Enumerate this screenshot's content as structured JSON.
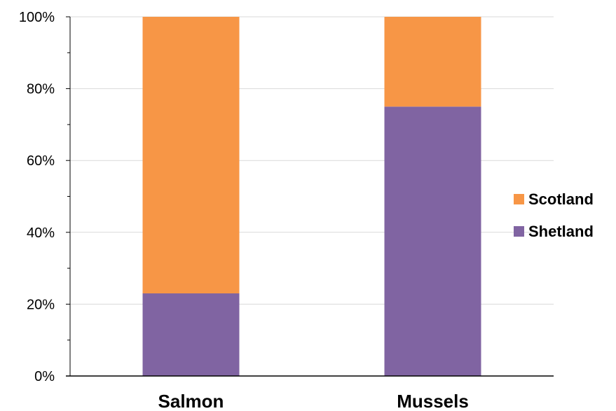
{
  "chart_data": {
    "type": "bar",
    "stacked": true,
    "percent": true,
    "categories": [
      "Salmon",
      "Mussels"
    ],
    "series": [
      {
        "name": "Shetland",
        "values": [
          23,
          75
        ],
        "color": "#8064A2"
      },
      {
        "name": "Scotland",
        "values": [
          77,
          25
        ],
        "color": "#F79646"
      }
    ],
    "ylim": [
      0,
      100
    ],
    "y_ticks": [
      "0%",
      "20%",
      "40%",
      "60%",
      "80%",
      "100%"
    ],
    "title": "",
    "xlabel": "",
    "ylabel": "",
    "grid": true,
    "legend_position": "right",
    "legend_order": [
      "Scotland",
      "Shetland"
    ]
  },
  "colors": {
    "gridline": "#D9D9D9",
    "axis": "#000000"
  }
}
